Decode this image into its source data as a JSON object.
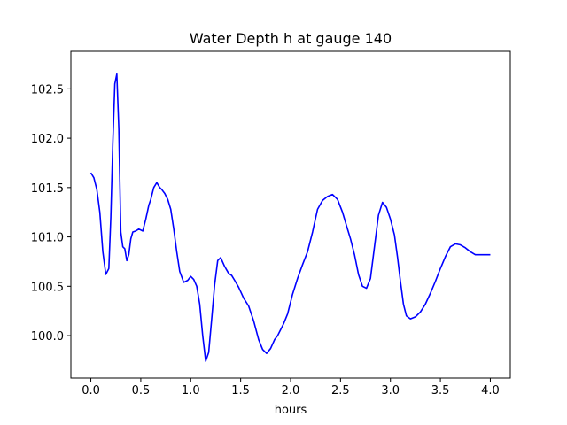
{
  "chart_data": {
    "type": "line",
    "title": "Water Depth h at gauge 140",
    "xlabel": "hours",
    "ylabel": "",
    "xlim": [
      -0.2,
      4.2
    ],
    "ylim": [
      99.57,
      102.88
    ],
    "xticks": [
      0.0,
      0.5,
      1.0,
      1.5,
      2.0,
      2.5,
      3.0,
      3.5,
      4.0
    ],
    "xtick_labels": [
      "0.0",
      "0.5",
      "1.0",
      "1.5",
      "2.0",
      "2.5",
      "3.0",
      "3.5",
      "4.0"
    ],
    "yticks": [
      100.0,
      100.5,
      101.0,
      101.5,
      102.0,
      102.5
    ],
    "ytick_labels": [
      "100.0",
      "100.5",
      "101.0",
      "101.5",
      "102.0",
      "102.5"
    ],
    "grid": false,
    "series": [
      {
        "color": "#0000ff",
        "x": [
          0.0,
          0.03,
          0.06,
          0.09,
          0.12,
          0.15,
          0.18,
          0.2,
          0.22,
          0.24,
          0.26,
          0.28,
          0.3,
          0.32,
          0.34,
          0.36,
          0.38,
          0.4,
          0.42,
          0.45,
          0.48,
          0.52,
          0.55,
          0.58,
          0.6,
          0.63,
          0.66,
          0.69,
          0.71,
          0.74,
          0.77,
          0.8,
          0.83,
          0.86,
          0.89,
          0.93,
          0.97,
          1.0,
          1.03,
          1.06,
          1.09,
          1.12,
          1.15,
          1.18,
          1.21,
          1.24,
          1.27,
          1.3,
          1.34,
          1.38,
          1.41,
          1.44,
          1.48,
          1.53,
          1.58,
          1.63,
          1.68,
          1.72,
          1.76,
          1.8,
          1.84,
          1.87,
          1.9,
          1.93,
          1.97,
          2.02,
          2.07,
          2.12,
          2.17,
          2.22,
          2.27,
          2.32,
          2.37,
          2.42,
          2.47,
          2.52,
          2.57,
          2.6,
          2.64,
          2.68,
          2.72,
          2.76,
          2.8,
          2.84,
          2.88,
          2.92,
          2.96,
          3.0,
          3.04,
          3.07,
          3.1,
          3.13,
          3.16,
          3.2,
          3.25,
          3.3,
          3.35,
          3.4,
          3.45,
          3.5,
          3.55,
          3.6,
          3.65,
          3.7,
          3.75,
          3.8,
          3.85,
          3.88,
          3.91,
          3.94,
          3.97,
          4.0
        ],
        "y": [
          101.65,
          101.6,
          101.48,
          101.25,
          100.85,
          100.62,
          100.68,
          101.2,
          101.95,
          102.55,
          102.65,
          102.1,
          101.05,
          100.9,
          100.88,
          100.76,
          100.82,
          100.98,
          101.05,
          101.06,
          101.08,
          101.06,
          101.18,
          101.32,
          101.38,
          101.5,
          101.55,
          101.5,
          101.48,
          101.44,
          101.38,
          101.28,
          101.08,
          100.85,
          100.65,
          100.54,
          100.56,
          100.6,
          100.57,
          100.5,
          100.32,
          100.0,
          99.74,
          99.83,
          100.17,
          100.52,
          100.76,
          100.79,
          100.7,
          100.63,
          100.61,
          100.56,
          100.49,
          100.38,
          100.3,
          100.15,
          99.96,
          99.86,
          99.82,
          99.87,
          99.96,
          100.0,
          100.06,
          100.12,
          100.22,
          100.42,
          100.58,
          100.72,
          100.85,
          101.05,
          101.28,
          101.37,
          101.41,
          101.43,
          101.38,
          101.25,
          101.08,
          100.98,
          100.82,
          100.62,
          100.5,
          100.48,
          100.58,
          100.9,
          101.22,
          101.35,
          101.3,
          101.18,
          101.02,
          100.8,
          100.55,
          100.32,
          100.2,
          100.17,
          100.19,
          100.24,
          100.32,
          100.43,
          100.55,
          100.68,
          100.8,
          100.9,
          100.93,
          100.92,
          100.89,
          100.85,
          100.82,
          100.82,
          100.82,
          100.82,
          100.82,
          100.82
        ]
      }
    ]
  }
}
